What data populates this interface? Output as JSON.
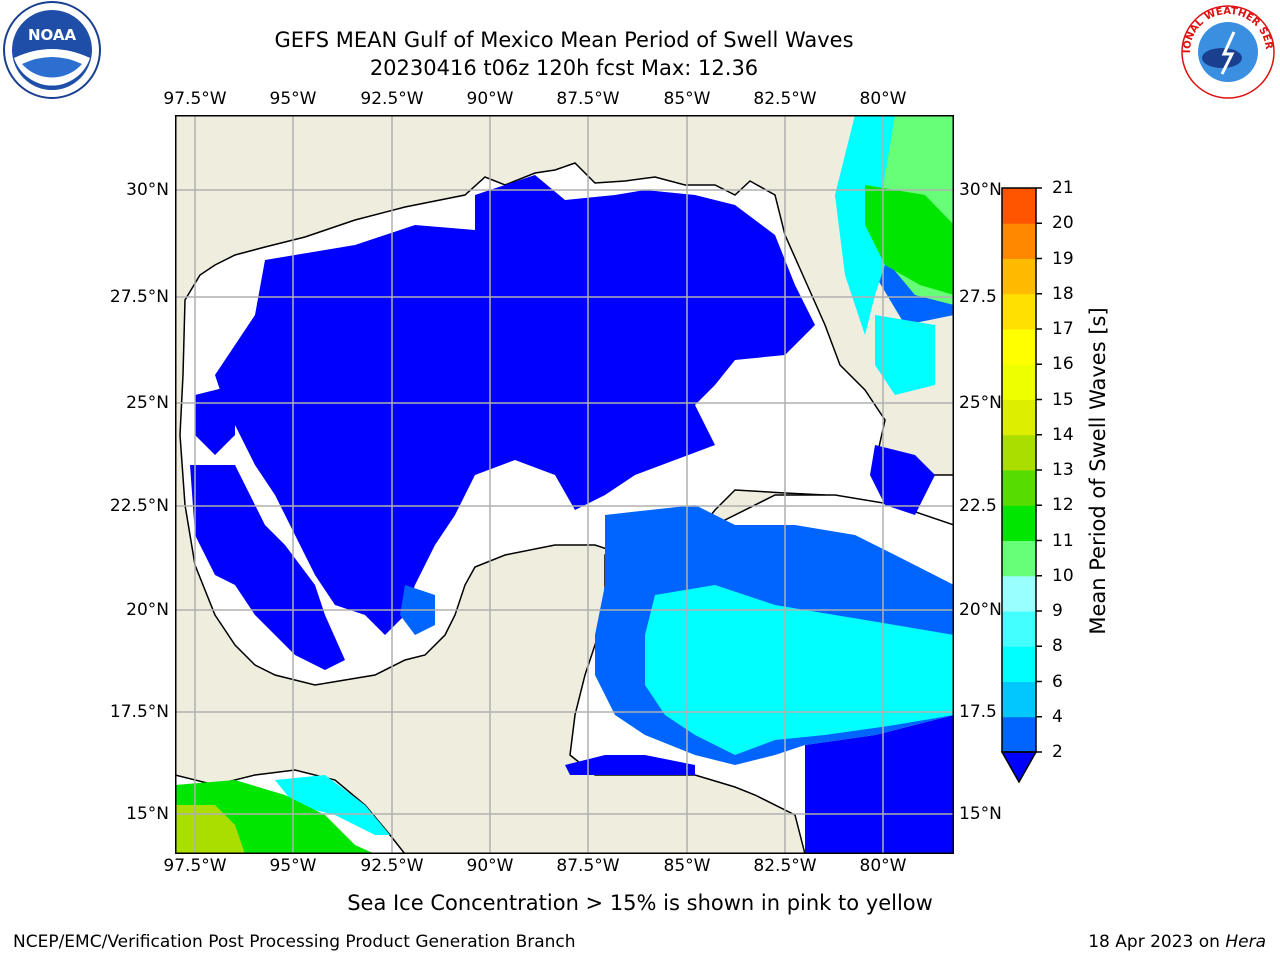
{
  "header": {
    "title_line1": "GEFS MEAN Gulf of Mexico Mean Period of Swell Waves",
    "title_line2": "20230416 t06z 120h fcst   Max: 12.36"
  },
  "logos": {
    "left": "NOAA",
    "right": "NATIONAL WEATHER SERVICE"
  },
  "map": {
    "lon_ticks": [
      "97.5°W",
      "95°W",
      "92.5°W",
      "90°W",
      "87.5°W",
      "85°W",
      "82.5°W",
      "80°W"
    ],
    "lat_ticks": [
      "30°N",
      "27.5°N",
      "25°N",
      "22.5°N",
      "20°N",
      "17.5°N",
      "15°N"
    ],
    "lat_ticks_right": [
      "30°N",
      "27.5",
      "25°N",
      "22.5",
      "20°N",
      "17.5",
      "15°N"
    ],
    "colors": {
      "land": "#efedde",
      "ocean": "#ffffff",
      "grid": "#b0b0b0"
    }
  },
  "colorbar": {
    "label": "Mean Period of Swell Waves [s]",
    "ticks": [
      "2",
      "4",
      "6",
      "8",
      "9",
      "10",
      "11",
      "12",
      "13",
      "14",
      "15",
      "16",
      "17",
      "18",
      "19",
      "20",
      "21"
    ],
    "colors": [
      "#0064ff",
      "#00c8ff",
      "#00ffff",
      "#44ffff",
      "#99ffff",
      "#66ff77",
      "#00e600",
      "#55dd00",
      "#aadd00",
      "#ddee00",
      "#eeff00",
      "#ffff00",
      "#ffe000",
      "#ffbb00",
      "#ff8800",
      "#ff5500",
      "#ff2200",
      "#ff0000"
    ],
    "extend_color": "#0000ff"
  },
  "note": "Sea Ice Concentration > 15% is shown in pink to yellow",
  "footer": {
    "left": "NCEP/EMC/Verification Post Processing Product Generation Branch",
    "date": "18 Apr 2023 on ",
    "machine": "Hera"
  }
}
